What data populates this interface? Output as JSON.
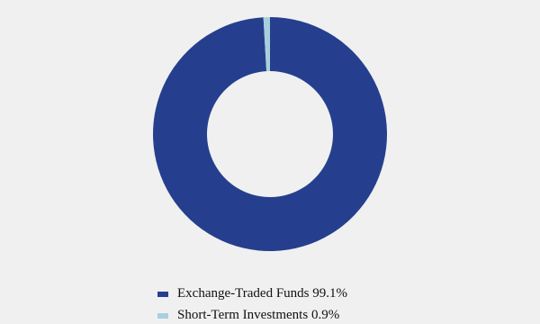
{
  "chart_data": {
    "type": "donut",
    "categories": [
      "Exchange-Traded Funds",
      "Short-Term Investments"
    ],
    "values": [
      99.1,
      0.9
    ],
    "value_labels": [
      "99.1%",
      "0.9%"
    ],
    "colors": [
      "#253f8e",
      "#a8d0dc"
    ]
  }
}
